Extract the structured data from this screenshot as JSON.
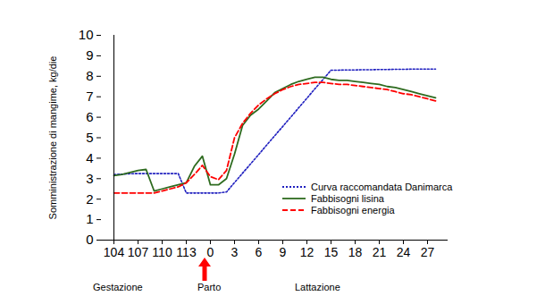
{
  "chart_data": {
    "type": "line",
    "y_label": "Somministrazione di mangime, kg/die",
    "categories": [
      "104",
      null,
      null,
      "107",
      null,
      null,
      "110",
      null,
      null,
      "113",
      null,
      null,
      "0",
      null,
      null,
      "3",
      null,
      null,
      "6",
      null,
      null,
      "9",
      null,
      null,
      "12",
      null,
      null,
      "15",
      null,
      null,
      "18",
      null,
      null,
      "21",
      null,
      null,
      "24",
      null,
      null,
      "27",
      null
    ],
    "ylim": [
      0,
      10
    ],
    "yticks": [
      0,
      1,
      2,
      3,
      4,
      5,
      6,
      7,
      8,
      9,
      10
    ],
    "grid": false,
    "legend": "lower right",
    "annotations": [
      "Gestazione",
      "Parto",
      "Lattazione"
    ],
    "series": [
      {
        "name": "Curva raccomandata Danimarca",
        "color": "#1f1fbf",
        "line_style": "dotted",
        "values": [
          3.2,
          3.22,
          3.24,
          3.25,
          3.25,
          3.25,
          3.25,
          3.25,
          3.25,
          2.3,
          2.3,
          2.3,
          2.3,
          2.3,
          2.35,
          2.81,
          3.27,
          3.72,
          4.18,
          4.64,
          5.1,
          5.55,
          6.01,
          6.47,
          6.93,
          7.39,
          7.84,
          8.3,
          8.3,
          8.31,
          8.31,
          8.32,
          8.32,
          8.33,
          8.33,
          8.34,
          8.34,
          8.35,
          8.35,
          8.35,
          8.35
        ]
      },
      {
        "name": "Fabbisogni lisina",
        "color": "#2e6b1f",
        "line_style": "solid",
        "values": [
          3.15,
          3.2,
          3.3,
          3.4,
          3.45,
          2.4,
          2.5,
          2.6,
          2.7,
          2.8,
          3.6,
          4.1,
          2.7,
          2.7,
          3.0,
          4.2,
          5.6,
          6.1,
          6.4,
          6.8,
          7.2,
          7.4,
          7.6,
          7.75,
          7.85,
          7.95,
          7.95,
          7.85,
          7.8,
          7.8,
          7.75,
          7.7,
          7.65,
          7.6,
          7.5,
          7.45,
          7.35,
          7.25,
          7.15,
          7.05,
          6.95
        ]
      },
      {
        "name": "Fabbisogni energia",
        "color": "#ff0000",
        "line_style": "dashed",
        "values": [
          2.3,
          2.3,
          2.3,
          2.3,
          2.3,
          2.3,
          2.4,
          2.5,
          2.6,
          2.8,
          3.2,
          3.65,
          3.1,
          2.95,
          3.4,
          5.0,
          5.7,
          6.2,
          6.6,
          6.9,
          7.15,
          7.35,
          7.5,
          7.6,
          7.65,
          7.7,
          7.7,
          7.65,
          7.6,
          7.6,
          7.55,
          7.5,
          7.45,
          7.4,
          7.35,
          7.25,
          7.15,
          7.1,
          7.0,
          6.9,
          6.8
        ]
      }
    ]
  }
}
